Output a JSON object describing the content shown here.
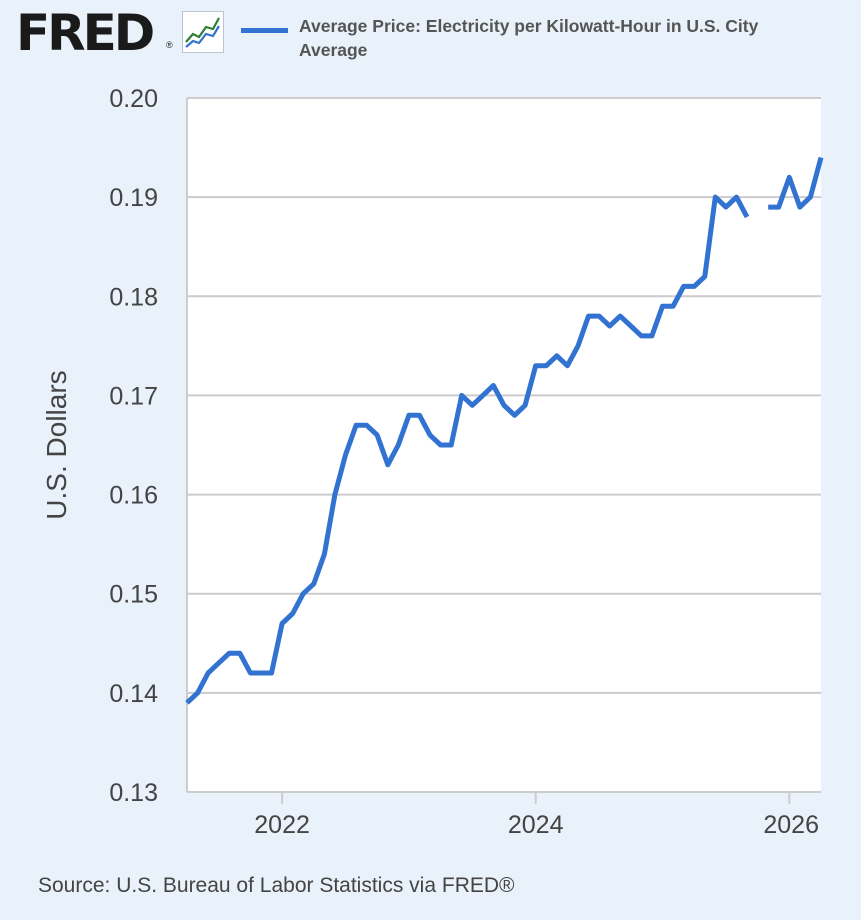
{
  "brand": {
    "logo_text": "FRED",
    "logo_mark": "®",
    "graph_icon": "line-chart-icon"
  },
  "colors": {
    "background": "#e9f1fa",
    "plot_background": "#ffffff",
    "line": "#3272d1",
    "grid": "#cccccc"
  },
  "source_text": "Source: U.S. Bureau of Labor Statistics via FRED®",
  "chart_data": {
    "type": "line",
    "title": "",
    "xlabel": "",
    "ylabel": "U.S. Dollars",
    "xlim": [
      "2021-04",
      "2026-04"
    ],
    "ylim": [
      0.13,
      0.2
    ],
    "y_ticks": [
      "0.13",
      "0.14",
      "0.15",
      "0.16",
      "0.17",
      "0.18",
      "0.19",
      "0.20"
    ],
    "x_ticks": [
      {
        "label": "2022",
        "date": "2022-01"
      },
      {
        "label": "2024",
        "date": "2024-01"
      },
      {
        "label": "2026",
        "date": "2026-01"
      }
    ],
    "grid": true,
    "legend_position": "top",
    "series": [
      {
        "name": "Average Price: Electricity per Kilowatt-Hour in U.S. City Average",
        "x": [
          "2021-04",
          "2021-05",
          "2021-06",
          "2021-07",
          "2021-08",
          "2021-09",
          "2021-10",
          "2021-11",
          "2021-12",
          "2022-01",
          "2022-02",
          "2022-03",
          "2022-04",
          "2022-05",
          "2022-06",
          "2022-07",
          "2022-08",
          "2022-09",
          "2022-10",
          "2022-11",
          "2022-12",
          "2023-01",
          "2023-02",
          "2023-03",
          "2023-04",
          "2023-05",
          "2023-06",
          "2023-07",
          "2023-08",
          "2023-09",
          "2023-10",
          "2023-11",
          "2023-12",
          "2024-01",
          "2024-02",
          "2024-03",
          "2024-04",
          "2024-05",
          "2024-06",
          "2024-07",
          "2024-08",
          "2024-09",
          "2024-10",
          "2024-11",
          "2024-12",
          "2025-01",
          "2025-02",
          "2025-03",
          "2025-04",
          "2025-05",
          "2025-06",
          "2025-07",
          "2025-08",
          "2025-09",
          "2025-10",
          "2025-11",
          "2025-12",
          "2026-01",
          "2026-02",
          "2026-03",
          "2026-04"
        ],
        "values": [
          0.139,
          0.14,
          0.142,
          0.143,
          0.144,
          0.144,
          0.142,
          0.142,
          0.142,
          0.147,
          0.148,
          0.15,
          0.151,
          0.154,
          0.16,
          0.164,
          0.167,
          0.167,
          0.166,
          0.163,
          0.165,
          0.168,
          0.168,
          0.166,
          0.165,
          0.165,
          0.17,
          0.169,
          0.17,
          0.171,
          0.169,
          0.168,
          0.169,
          0.173,
          0.173,
          0.174,
          0.173,
          0.175,
          0.178,
          0.178,
          0.177,
          0.178,
          0.177,
          0.176,
          0.176,
          0.179,
          0.179,
          0.181,
          0.181,
          0.182,
          0.19,
          0.189,
          0.19,
          0.188,
          null,
          0.189,
          0.189,
          0.192,
          0.189,
          0.19,
          0.194
        ]
      }
    ]
  }
}
